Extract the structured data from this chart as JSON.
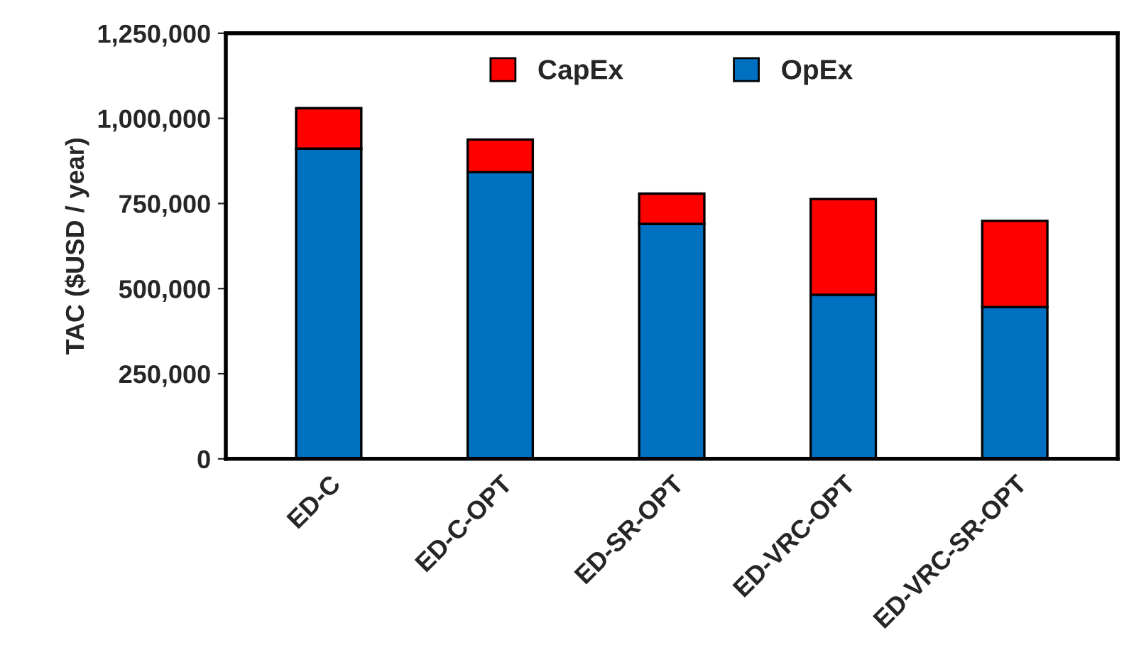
{
  "chart_data": {
    "type": "bar",
    "stacked": true,
    "ylabel": "TAC ($USD / year)",
    "categories": [
      "ED-C",
      "ED-C-OPT",
      "ED-SR-OPT",
      "ED-VRC-OPT",
      "ED-VRC-SR-OPT"
    ],
    "series": [
      {
        "name": "OpEx",
        "color": "#0070c0",
        "values": [
          911000,
          842000,
          690000,
          482000,
          446000
        ]
      },
      {
        "name": "CapEx",
        "color": "#ff0000",
        "values": [
          119000,
          96000,
          89000,
          281000,
          253000
        ]
      }
    ],
    "ylim": [
      0,
      1250000
    ],
    "yticks": [
      {
        "value": 0,
        "label": "0"
      },
      {
        "value": 250000,
        "label": "250,000"
      },
      {
        "value": 500000,
        "label": "500,000"
      },
      {
        "value": 750000,
        "label": "750,000"
      },
      {
        "value": 1000000,
        "label": "1,000,000"
      },
      {
        "value": 1250000,
        "label": "1,250,000"
      }
    ],
    "legend": "top",
    "grid": false
  }
}
